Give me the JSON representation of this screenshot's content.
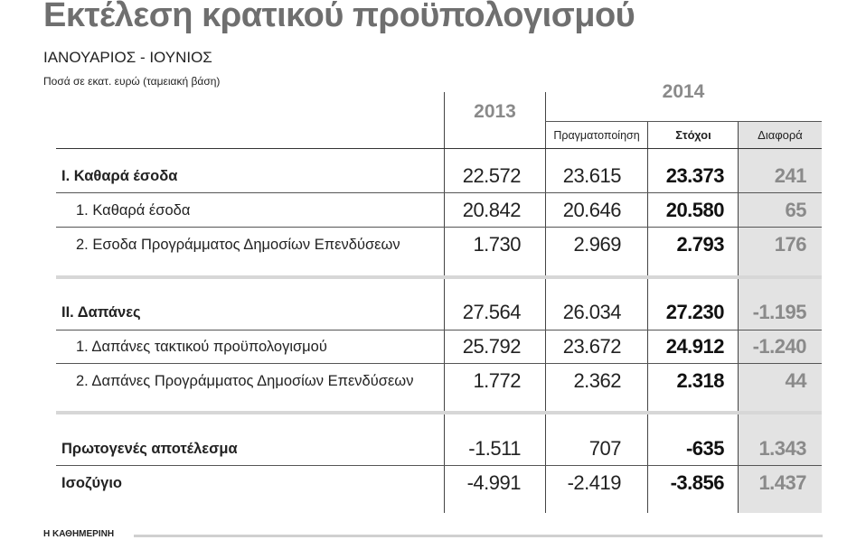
{
  "header": {
    "title": "Εκτέλεση κρατικού προϋπολογισμού",
    "period": "ΙΑΝΟΥΑΡΙΟΣ - ΙΟΥΝΙΟΣ",
    "units": "Ποσά σε εκατ. ευρώ (ταμειακή βάση)"
  },
  "columns": {
    "year_2013": "2013",
    "year_2014": "2014",
    "realization": "Πραγματοποίηση",
    "targets": "Στόχοι",
    "difference": "Διαφορά"
  },
  "rows": [
    {
      "label": "Ι. Καθαρά έσοδα",
      "v2013": "22.572",
      "real": "23.615",
      "target": "23.373",
      "diff": "241"
    },
    {
      "label": "1. Καθαρά έσοδα",
      "v2013": "20.842",
      "real": "20.646",
      "target": "20.580",
      "diff": "65"
    },
    {
      "label": "2. Εσοδα Προγράμματος Δημοσίων Επενδύσεων",
      "v2013": "1.730",
      "real": "2.969",
      "target": "2.793",
      "diff": "176"
    },
    {
      "label": "ΙΙ. Δαπάνες",
      "v2013": "27.564",
      "real": "26.034",
      "target": "27.230",
      "diff": "-1.195"
    },
    {
      "label": "1. Δαπάνες τακτικού προϋπολογισμού",
      "v2013": "25.792",
      "real": "23.672",
      "target": "24.912",
      "diff": "-1.240"
    },
    {
      "label": "2. Δαπάνες Προγράμματος Δημοσίων Επενδύσεων",
      "v2013": "1.772",
      "real": "2.362",
      "target": "2.318",
      "diff": "44"
    },
    {
      "label": "Πρωτογενές αποτέλεσμα",
      "v2013": "-1.511",
      "real": "707",
      "target": "-635",
      "diff": "1.343"
    },
    {
      "label": "Ισοζύγιο",
      "v2013": "-4.991",
      "real": "-2.419",
      "target": "-3.856",
      "diff": "1.437"
    }
  ],
  "footer": {
    "source": "Η ΚΑΘΗΜΕΡΙΝΗ"
  }
}
